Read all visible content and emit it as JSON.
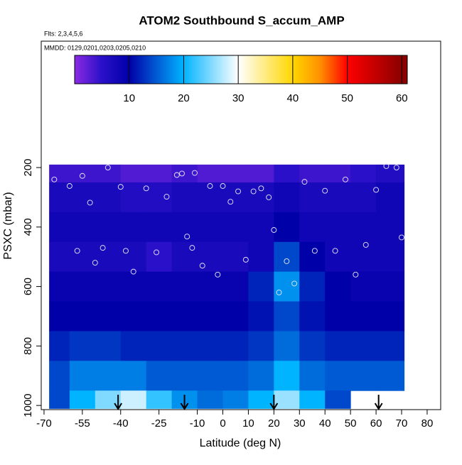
{
  "chart_data": {
    "type": "heatmap",
    "title": "ATOM2 Southbound S_accum_AMP",
    "subtitle": "Flts: 2,3,4,5,6",
    "annotation": "MMDD: 0129,0201,0203,0205,0210",
    "x_label": "Latitude (deg N)",
    "y_label": "PSXC (mbar)",
    "xlim": [
      -71.1,
      85.3
    ],
    "xticks": [
      -70,
      -55,
      -40,
      -25,
      -10,
      0,
      10,
      20,
      30,
      40,
      50,
      60,
      70,
      80
    ],
    "ylim": [
      1014,
      -225
    ],
    "yticks": [
      200,
      400,
      600,
      800,
      1000
    ],
    "colorbar_lim": [
      0,
      61
    ],
    "colorbar_ticks": [
      10,
      20,
      30,
      40,
      50,
      60
    ],
    "colormap": [
      {
        "value": 0,
        "color": "#8a2be2"
      },
      {
        "value": 5,
        "color": "#2a10c8"
      },
      {
        "value": 10,
        "color": "#0000a8"
      },
      {
        "value": 20,
        "color": "#00b4ff"
      },
      {
        "value": 30,
        "color": "#ffffff"
      },
      {
        "value": 40,
        "color": "#ffd700"
      },
      {
        "value": 45,
        "color": "#ff9000"
      },
      {
        "value": 50,
        "color": "#ff0000"
      },
      {
        "value": 60,
        "color": "#8b0000"
      }
    ],
    "lat_edges": [
      -68,
      -60,
      -50,
      -40,
      -30,
      -20,
      -10,
      0,
      10,
      20,
      30,
      40,
      50,
      60,
      71
    ],
    "p_edges": [
      190,
      250,
      350,
      450,
      550,
      650,
      750,
      850,
      950,
      1010
    ],
    "values": [
      [
        4,
        4,
        4,
        3,
        3,
        4,
        3,
        3,
        3,
        5,
        4,
        4,
        5,
        6
      ],
      [
        7,
        7,
        7,
        6,
        6,
        7,
        7,
        7,
        7,
        8,
        7,
        7,
        7,
        8
      ],
      [
        8,
        8,
        8,
        8,
        8,
        8,
        8,
        8,
        8,
        10,
        8,
        8,
        8,
        8
      ],
      [
        7,
        7,
        7,
        7,
        5,
        7,
        7,
        7,
        8,
        14,
        10,
        8,
        8,
        8
      ],
      [
        9,
        9,
        9,
        9,
        9,
        9,
        9,
        9,
        12,
        18,
        12,
        10,
        9,
        9
      ],
      [
        10,
        10,
        10,
        10,
        10,
        10,
        10,
        10,
        11,
        14,
        11,
        10,
        10,
        10
      ],
      [
        12,
        13,
        13,
        12,
        12,
        12,
        12,
        12,
        13,
        16,
        13,
        12,
        12,
        12
      ],
      [
        14,
        17,
        17,
        17,
        15,
        15,
        15,
        15,
        16,
        20,
        16,
        15,
        15,
        15
      ],
      [
        14,
        20,
        25,
        28,
        22,
        18,
        16,
        17,
        20,
        26,
        20,
        14,
        null,
        null
      ]
    ],
    "points": {
      "lat": [
        -66,
        -60,
        -57,
        -55,
        -52,
        -50,
        -47,
        -45,
        -40,
        -38,
        -35,
        -30,
        -26,
        -22,
        -18,
        -16,
        -14,
        -12,
        -11,
        -8,
        -5,
        -2,
        0,
        3,
        6,
        9,
        12,
        15,
        18,
        20,
        22,
        25,
        28,
        32,
        36,
        40,
        44,
        48,
        52,
        56,
        60,
        64,
        68,
        70
      ],
      "p": [
        240,
        262,
        480,
        228,
        318,
        520,
        470,
        200,
        265,
        480,
        550,
        270,
        485,
        298,
        225,
        220,
        432,
        470,
        218,
        530,
        262,
        560,
        262,
        315,
        280,
        510,
        280,
        270,
        300,
        410,
        620,
        515,
        590,
        248,
        480,
        278,
        480,
        240,
        560,
        460,
        275,
        195,
        200,
        435
      ]
    },
    "arrows_x": [
      -41,
      -15,
      20,
      61
    ]
  }
}
